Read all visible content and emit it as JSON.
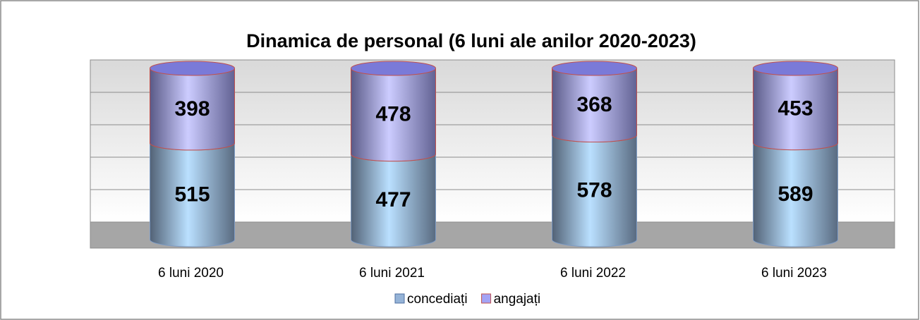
{
  "chart_data": {
    "type": "bar",
    "stacking": "percent",
    "grid": true,
    "title": "Dinamica de personal (6 luni ale anilor 2020-2023)",
    "categories": [
      "6 luni 2020",
      "6 luni 2021",
      "6 luni 2022",
      "6 luni 2023"
    ],
    "series": [
      {
        "name": "concediați",
        "color": "#95b3d7",
        "values": [
          515,
          477,
          578,
          589
        ]
      },
      {
        "name": "angajați",
        "color": "#a3a3f5",
        "values": [
          398,
          478,
          368,
          453
        ]
      }
    ]
  }
}
